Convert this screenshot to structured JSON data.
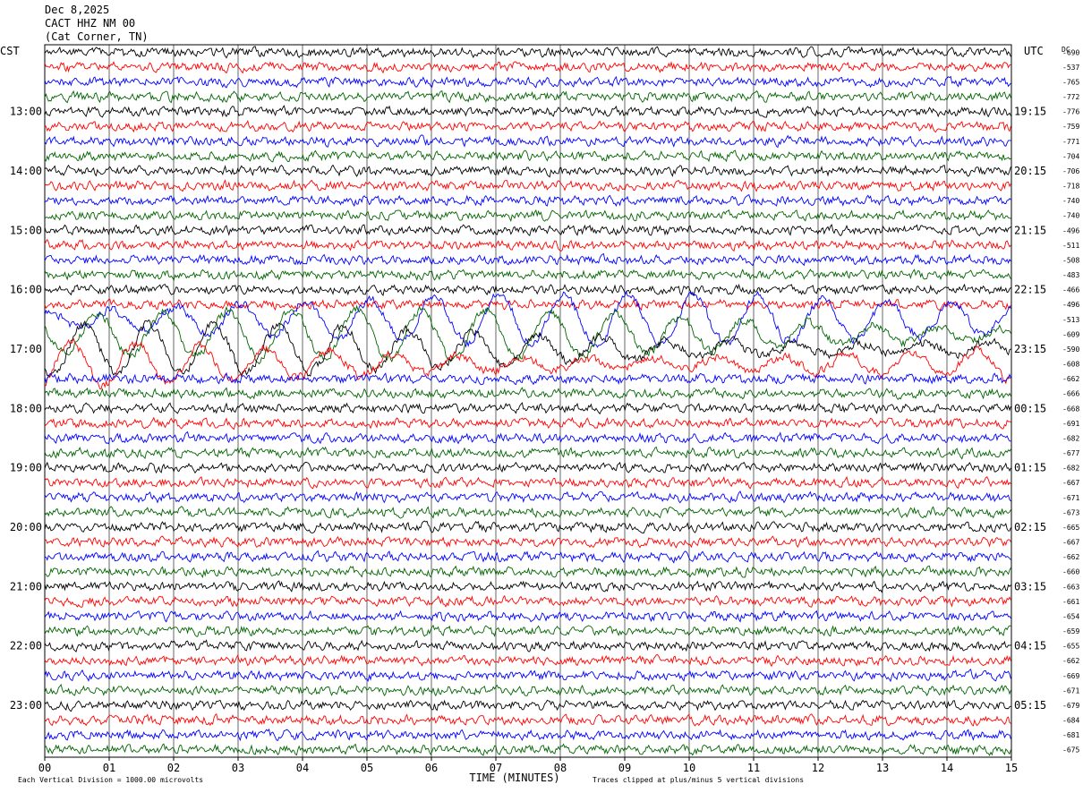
{
  "header": {
    "date": "Dec 8,2025",
    "station": "CACT HHZ NM 00",
    "location": "(Cat Corner, TN)"
  },
  "footer": {
    "scale_note": "Each Vertical Division = 1000.00 microvolts",
    "xlabel": "TIME (MINUTES)",
    "clip_note": "Traces clipped at plus/minus 5 vertical divisions"
  },
  "chart_data": {
    "type": "line",
    "title": "CACT HHZ NM 00 (Cat Corner, TN)",
    "xlabel": "TIME (MINUTES)",
    "left_axis_label": "CST",
    "right_axis_label": "UTC",
    "dc_label": "DC",
    "xlim": [
      0,
      15
    ],
    "x_ticks": [
      "00",
      "01",
      "02",
      "03",
      "04",
      "05",
      "06",
      "07",
      "08",
      "09",
      "10",
      "11",
      "12",
      "13",
      "14",
      "15"
    ],
    "rows_per_hour": 4,
    "minutes_per_row": 15,
    "trace_colors": [
      "#000000",
      "#ff0000",
      "#0000ff",
      "#006400"
    ],
    "left_hour_labels": [
      "13:00",
      "14:00",
      "15:00",
      "16:00",
      "17:00",
      "18:00",
      "19:00",
      "20:00",
      "21:00",
      "22:00",
      "23:00"
    ],
    "right_hour_labels": [
      "19:15",
      "20:15",
      "21:15",
      "22:15",
      "23:15",
      "00:15",
      "01:15",
      "02:15",
      "03:15",
      "04:15",
      "05:15"
    ],
    "first_labeled_row": 4,
    "dc_offsets": [
      -690,
      -537,
      -765,
      -772,
      -776,
      -759,
      -771,
      -704,
      -706,
      -718,
      -740,
      -740,
      -496,
      -511,
      -508,
      -483,
      -466,
      -496,
      -513,
      -609,
      -590,
      -608,
      -662,
      -666,
      -668,
      -691,
      -682,
      -677,
      -682,
      -667,
      -671,
      -673,
      -665,
      -667,
      -662,
      -660,
      -663,
      -661,
      -654,
      -659,
      -655,
      -662,
      -669,
      -671,
      -679,
      -684,
      -681,
      -675
    ],
    "grid": true
  }
}
